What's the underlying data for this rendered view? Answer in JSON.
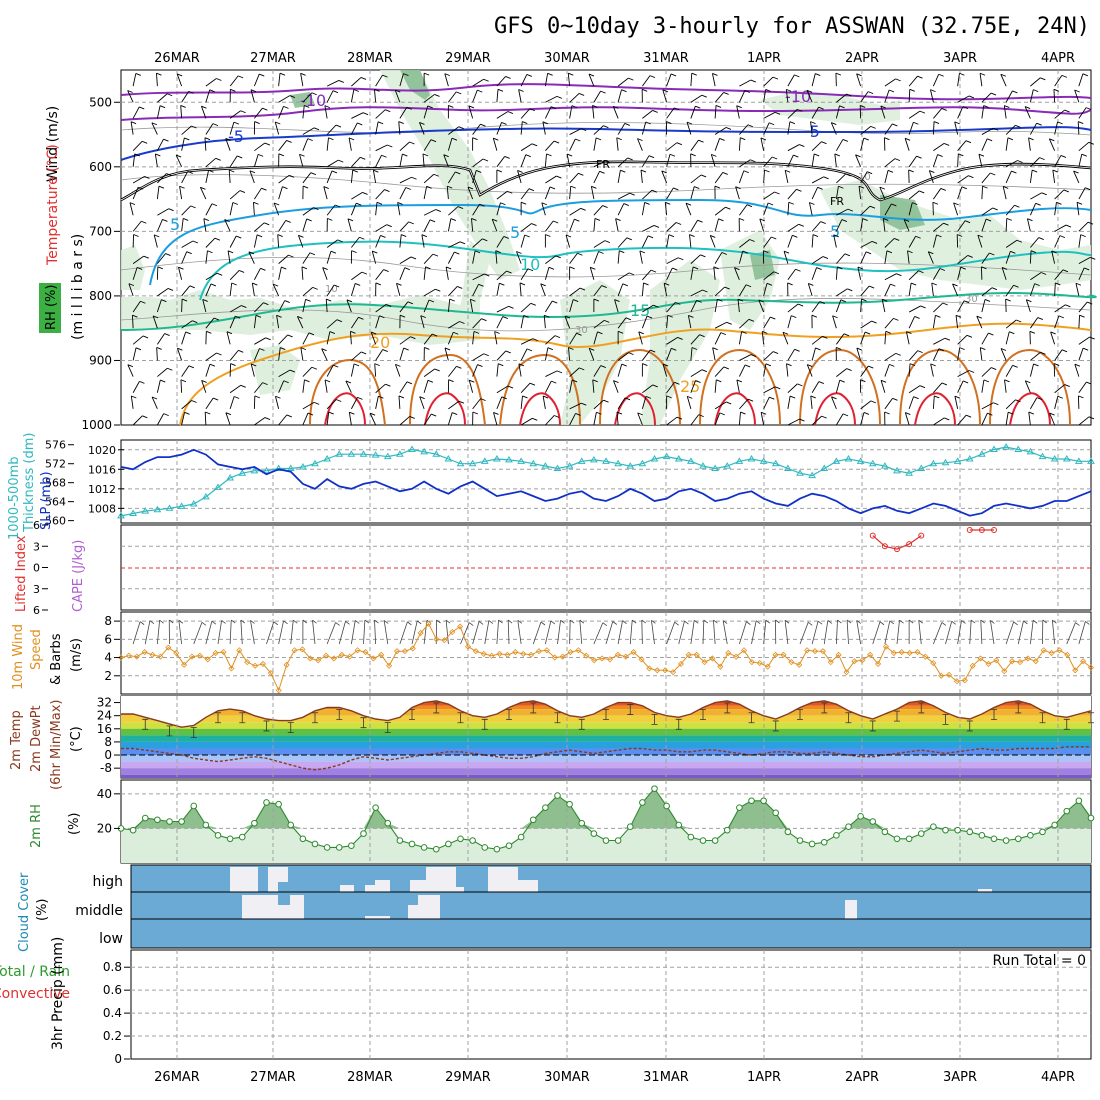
{
  "title": "GFS 0~10day 3-hourly for ASSWAN (32.75E, 24N)",
  "dates": [
    "26MAR",
    "27MAR",
    "28MAR",
    "29MAR",
    "30MAR",
    "31MAR",
    "1APR",
    "2APR",
    "3APR",
    "4APR"
  ],
  "colors": {
    "grid": "#a0a0a0",
    "rh_fill": "#d9edd9",
    "rh_dark": "#7fb88a",
    "slp": "#1030c8",
    "thickness": "#30b8c0",
    "temp_line": "#8a3a20",
    "wind_line": "#e09020",
    "rh2m": "#2e8a2e",
    "cloud_bg": "#6aaad5",
    "cloud_fill": "#f0f0f4",
    "li": "#e03030"
  },
  "panels": {
    "upper_air": {
      "y_labels": [
        "Wind (m/s)",
        "Temperature (°C)",
        "RH (%)",
        "(m i l l i b a r s)"
      ],
      "pressure_ticks": [
        500,
        600,
        700,
        800,
        900,
        1000
      ],
      "contour_labels": [
        "-10",
        "-10",
        "-5",
        "-5",
        "FR",
        "FR",
        "5",
        "5",
        "5",
        "10",
        "15",
        "20",
        "25",
        "30",
        "30",
        "10",
        "10"
      ]
    },
    "slp": {
      "y_labels_left": [
        "1000-500mb",
        "Thickness (dm)"
      ],
      "y_labels_right": [
        "SLP (mb)"
      ],
      "thick_ticks": [
        576,
        572,
        568,
        564,
        560
      ],
      "slp_ticks": [
        1020,
        1016,
        1012,
        1008
      ]
    },
    "cape": {
      "y_labels": [
        "Lifted Index",
        "CAPE (J/kg)"
      ],
      "ticks": [
        "6",
        "3",
        "0",
        "-3",
        "-6"
      ]
    },
    "wind10": {
      "y_labels": [
        "10m Wind",
        "Speed",
        "& Barbs",
        "(m/s)"
      ],
      "ticks": [
        8,
        6,
        4,
        2
      ]
    },
    "temp2m": {
      "y_labels": [
        "2m Temp",
        "2m DewPt",
        "(6hr Min/Max)",
        "(°C)"
      ],
      "ticks": [
        32,
        24,
        16,
        8,
        0,
        -8
      ]
    },
    "rh2m": {
      "y_labels": [
        "2m RH",
        "(%)"
      ],
      "ticks": [
        40,
        20
      ]
    },
    "cloud": {
      "y_labels": [
        "Cloud Cover",
        "(%)"
      ],
      "levels": [
        "high",
        "middle",
        "low"
      ]
    },
    "precip": {
      "y_labels": [
        "Total / Rain",
        "Convective",
        "3hr Precip (mm)"
      ],
      "ticks": [
        "0.8",
        "0.6",
        "0.4",
        "0.2",
        "0"
      ],
      "run_total": "Run Total = 0"
    }
  },
  "chart_data": [
    {
      "type": "line",
      "title": "SLP and 1000-500mb Thickness",
      "x": "3-hourly steps 0..80 starting 25MAR 18Z",
      "series": [
        {
          "name": "SLP (mb)",
          "ylim": [
            1005,
            1022
          ],
          "values": [
            1016.5,
            1016,
            1017.5,
            1018.5,
            1018.5,
            1019,
            1020,
            1019,
            1017,
            1016.5,
            1016,
            1016.5,
            1015,
            1016,
            1015.5,
            1013,
            1012,
            1014,
            1012.5,
            1012,
            1013,
            1013.5,
            1012.5,
            1011.5,
            1012,
            1013.5,
            1012,
            1011,
            1012.5,
            1013.5,
            1012,
            1010.5,
            1011,
            1011.5,
            1010.5,
            1009.5,
            1010,
            1011,
            1011.5,
            1010,
            1009.5,
            1010.5,
            1012,
            1011,
            1009.5,
            1010,
            1011.5,
            1012,
            1011,
            1009.5,
            1010,
            1011,
            1011.5,
            1010,
            1009,
            1008.5,
            1010,
            1011,
            1010.5,
            1009.5,
            1008,
            1007,
            1008,
            1008.5,
            1007.5,
            1007,
            1008,
            1009,
            1008.5,
            1007.5,
            1006.5,
            1007,
            1008.5,
            1009,
            1008.5,
            1008,
            1008.5,
            1009.5,
            1009.5,
            1010.5,
            1011.5
          ]
        },
        {
          "name": "1000-500mb Thickness (dm)",
          "ylim": [
            559.5,
            577
          ],
          "values": [
            561,
            561.5,
            562,
            562.3,
            562.6,
            563,
            563.5,
            565,
            567,
            569,
            570,
            570.5,
            570.5,
            571,
            571,
            571.3,
            572,
            573,
            574,
            574,
            574,
            573.8,
            573.5,
            574,
            575,
            574.5,
            574,
            573,
            572,
            572,
            572.5,
            573,
            572.8,
            572.5,
            572,
            571.5,
            571,
            571.5,
            572.5,
            572.8,
            572.5,
            572,
            571.5,
            572,
            573,
            573.5,
            573,
            572.5,
            571.5,
            571,
            571.5,
            572.5,
            573,
            572.5,
            572,
            571,
            570,
            569.5,
            571,
            572.5,
            573,
            572.5,
            572,
            571.5,
            570.5,
            570,
            571,
            572,
            572.2,
            572.5,
            573,
            574,
            575,
            575.5,
            575,
            574.5,
            573.5,
            573,
            573,
            572.5,
            572.5
          ]
        }
      ]
    },
    {
      "type": "line",
      "title": "Lifted Index",
      "x": "3-hourly steps",
      "series": [
        {
          "name": "Lifted Index",
          "points": [
            [
              62,
              4.5
            ],
            [
              63,
              3
            ],
            [
              64,
              2.6
            ],
            [
              65,
              3.3
            ],
            [
              66,
              4.5
            ],
            [
              70,
              5.3
            ],
            [
              71,
              5.3
            ],
            [
              72,
              5.3
            ]
          ]
        }
      ],
      "ylim": [
        6,
        -6
      ]
    },
    {
      "type": "line",
      "title": "10m Wind Speed",
      "ylim": [
        0,
        9
      ],
      "values": [
        4,
        4.2,
        4.1,
        4.6,
        4.3,
        4.1,
        5.1,
        4.5,
        3.2,
        4.1,
        4.2,
        3.8,
        4.5,
        4.6,
        2.8,
        4.8,
        3.5,
        3.1,
        3.3,
        2.3,
        0.4,
        3.2,
        4.8,
        4.9,
        3.9,
        3.7,
        4.2,
        3.9,
        4.3,
        4.1,
        4.8,
        4.6,
        3.9,
        4.3,
        3.1,
        4.7,
        4.7,
        5,
        6.7,
        7.7,
        6,
        5.9,
        6.8,
        7.4,
        5.2,
        4.7,
        4.4,
        4.2,
        4.4,
        4.3,
        4.6,
        4.4,
        4.3,
        4.7,
        4.8,
        4,
        4.1,
        4.6,
        4.8,
        4.2,
        3.7,
        3.9,
        3.8,
        4.3,
        4.1,
        4.6,
        3.8,
        2.8,
        2.6,
        2.6,
        2.4,
        3.3,
        4.3,
        4.3,
        3.5,
        3.9,
        3,
        4.5,
        4.1,
        4.8,
        3.5,
        3.4,
        3,
        4.3,
        4.3,
        3.5,
        3.2,
        4.8,
        4.7,
        4.7,
        3.5,
        4.3,
        2.4,
        3.6,
        3.7,
        4.3,
        3.3,
        5.2,
        4.5,
        4.6,
        4.5,
        4.6,
        4.1,
        3.4,
        2,
        2.1,
        1.4,
        1.5,
        3.1,
        3.9,
        3.3,
        3.7,
        2.5,
        3.6,
        3.5,
        3.9,
        3.6,
        4.8,
        4.5,
        4.8,
        4.3,
        2.6,
        3.6,
        2.9
      ]
    },
    {
      "type": "area",
      "title": "2m Temp",
      "ylim": [
        -14,
        36
      ],
      "values": [
        25,
        25,
        23,
        21,
        19,
        17,
        18,
        23,
        27,
        28,
        27,
        24,
        22,
        21,
        21,
        23,
        27,
        29,
        29,
        27,
        24,
        22,
        21,
        23,
        29,
        32,
        33,
        31,
        27,
        24,
        23,
        25,
        29,
        32,
        33,
        31,
        27,
        24,
        23,
        25,
        29,
        32,
        32,
        30,
        26,
        24,
        23,
        25,
        29,
        32,
        33,
        31,
        27,
        24,
        22,
        25,
        29,
        32,
        33,
        31,
        27,
        24,
        22,
        25,
        28,
        32,
        33,
        30,
        26,
        23,
        22,
        25,
        29,
        32,
        33,
        31,
        27,
        24,
        23,
        25,
        27
      ]
    },
    {
      "type": "line",
      "title": "2m DewPt",
      "ylim": [
        -14,
        36
      ],
      "values": [
        4,
        4,
        3,
        2,
        1,
        0,
        -2,
        -3,
        -4,
        -3,
        -2,
        -1,
        -2,
        -4,
        -6,
        -8,
        -9,
        -8,
        -6,
        -3,
        -1,
        -2,
        -3,
        -2,
        -1,
        0,
        1,
        2,
        2,
        1,
        0,
        -1,
        -2,
        -2,
        -1,
        1,
        2,
        3,
        2,
        1,
        2,
        3,
        4,
        4,
        3,
        3,
        2,
        2,
        3,
        3,
        2,
        1,
        0,
        1,
        2,
        2,
        1,
        1,
        2,
        1,
        0,
        -1,
        -1,
        0,
        1,
        2,
        3,
        2,
        1,
        2,
        3,
        4,
        3,
        3,
        4,
        4,
        4,
        4,
        5,
        5,
        5
      ]
    },
    {
      "type": "area",
      "title": "2m RH",
      "ylim": [
        0,
        48
      ],
      "values": [
        20,
        19,
        26,
        25,
        24,
        24,
        33,
        22,
        16,
        14,
        15,
        23,
        35,
        34,
        22,
        14,
        11,
        9,
        9,
        10,
        17,
        32,
        23,
        13,
        11,
        9,
        8,
        11,
        14,
        13,
        9,
        8,
        10,
        15,
        25,
        32,
        39,
        34,
        23,
        17,
        13,
        13,
        21,
        35,
        43,
        33,
        22,
        15,
        13,
        13,
        19,
        32,
        36,
        36,
        29,
        18,
        13,
        11,
        12,
        16,
        21,
        27,
        24,
        18,
        14,
        14,
        17,
        21,
        19,
        19,
        18,
        16,
        14,
        13,
        14,
        16,
        18,
        22,
        30,
        36,
        26
      ]
    },
    {
      "type": "bar",
      "title": "3hr Precip (mm)",
      "ylim": [
        0,
        1
      ],
      "values": []
    }
  ]
}
